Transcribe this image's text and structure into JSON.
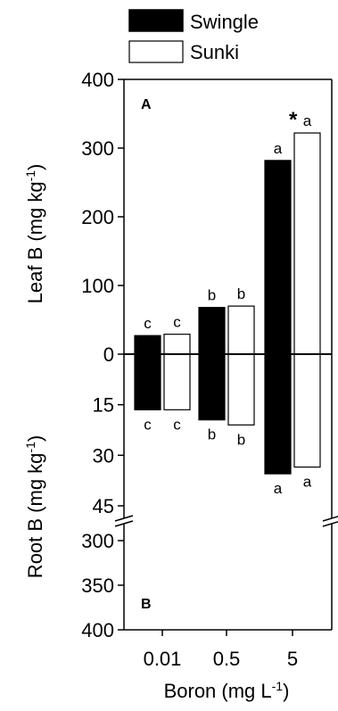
{
  "chart_data": {
    "type": "bar",
    "categories": [
      "0.01",
      "0.5",
      "5"
    ],
    "xlabel": "Boron (mg L",
    "xlabel_sup": "-1",
    "xlabel_end": ")",
    "legend": {
      "placement": "top",
      "entries": [
        {
          "name": "Swingle",
          "color": "#000000"
        },
        {
          "name": "Sunki",
          "color": "#ffffff"
        }
      ]
    },
    "leaf": {
      "panel": "A",
      "ylabel": "Leaf B (mg kg",
      "ylabel_sup": "-1",
      "ylabel_end": ")",
      "ylim": [
        0,
        400
      ],
      "ticks": [
        "0",
        "100",
        "200",
        "300",
        "400"
      ],
      "series": [
        {
          "name": "Swingle",
          "values": [
            27,
            68,
            282
          ],
          "letters": [
            "c",
            "b",
            "a"
          ]
        },
        {
          "name": "Sunki",
          "values": [
            29,
            70,
            322
          ],
          "letters": [
            "c",
            "b",
            "a"
          ]
        }
      ],
      "annotation": "*"
    },
    "root": {
      "panel": "B",
      "ylabel": "Root B (mg kg",
      "ylabel_sup": "-1",
      "ylabel_end": ")",
      "ylim_upper": [
        0,
        45
      ],
      "ylim_lower": [
        300,
        400
      ],
      "ticks_upper": [
        "15",
        "30",
        "45"
      ],
      "ticks_lower": [
        "300",
        "350",
        "400"
      ],
      "series": [
        {
          "name": "Swingle",
          "values": [
            16.5,
            19.5,
            35.5
          ],
          "letters": [
            "c",
            "b",
            "a"
          ]
        },
        {
          "name": "Sunki",
          "values": [
            16.5,
            21,
            33.5
          ],
          "letters": [
            "c",
            "b",
            "a"
          ]
        }
      ]
    }
  }
}
